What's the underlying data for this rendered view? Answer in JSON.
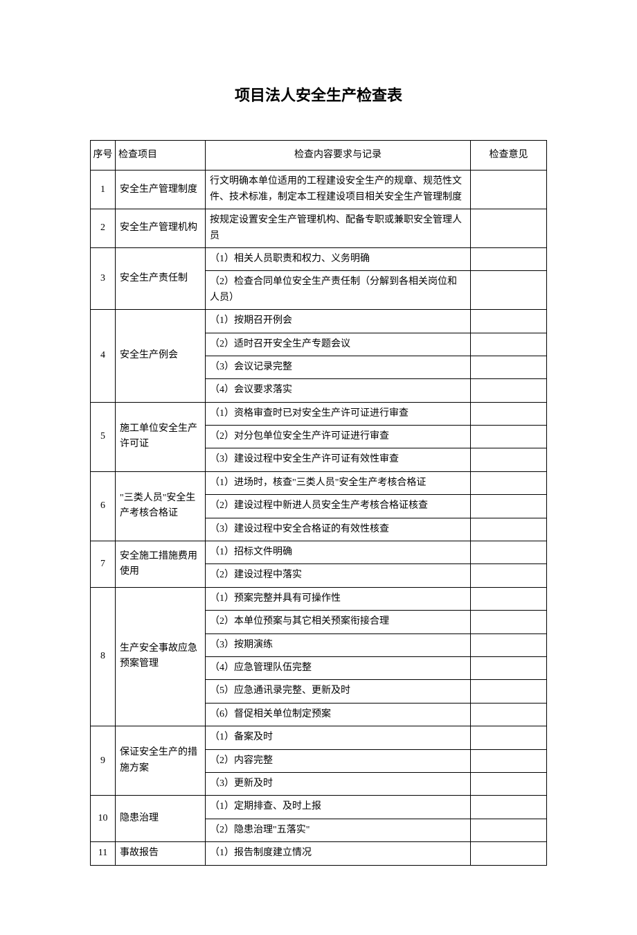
{
  "title": "项目法人安全生产检查表",
  "headers": {
    "seq": "序号",
    "item": "检查项目",
    "content": "检查内容要求与记录",
    "opinion": "检查意见"
  },
  "rows": [
    {
      "seq": "1",
      "item": "安全生产管理制度",
      "contents": [
        "行文明确本单位适用的工程建设安全生产的规章、规范性文件、技术标准，制定本工程建设项目相关安全生产管理制度"
      ],
      "opinion": ""
    },
    {
      "seq": "2",
      "item": "安全生产管理机构",
      "contents": [
        "按规定设置安全生产管理机构、配备专职或兼职安全管理人员"
      ],
      "opinion": ""
    },
    {
      "seq": "3",
      "item": "安全生产责任制",
      "contents": [
        "（1）相关人员职责和权力、义务明确",
        "（2）检查合同单位安全生产责任制（分解到各相关岗位和人员）"
      ],
      "opinion": ""
    },
    {
      "seq": "4",
      "item": "安全生产例会",
      "contents": [
        "（1）按期召开例会",
        "（2）适时召开安全生产专题会议",
        "（3）会议记录完整",
        "（4）会议要求落实"
      ],
      "opinion": ""
    },
    {
      "seq": "5",
      "item": "施工单位安全生产许可证",
      "contents": [
        "（1）资格审查时已对安全生产许可证进行审查",
        "（2）对分包单位安全生产许可证进行审查",
        "（3）建设过程中安全生产许可证有效性审查"
      ],
      "opinion": ""
    },
    {
      "seq": "6",
      "item": "\"三类人员\"安全生产考核合格证",
      "contents": [
        "（1）进场时，核查\"三类人员\"安全生产考核合格证",
        "（2）建设过程中新进人员安全生产考核合格证核查",
        "（3）建设过程中安全合格证的有效性核查"
      ],
      "opinion": ""
    },
    {
      "seq": "7",
      "item": "安全施工措施费用使用",
      "contents": [
        "（1）招标文件明确",
        "（2）建设过程中落实"
      ],
      "opinion": ""
    },
    {
      "seq": "8",
      "item": "生产安全事故应急预案管理",
      "contents": [
        "（1）预案完整并具有可操作性",
        "（2）本单位预案与其它相关预案衔接合理",
        "（3）按期演练",
        "（4）应急管理队伍完整",
        "（5）应急通讯录完整、更新及时",
        "（6）督促相关单位制定预案"
      ],
      "opinion": ""
    },
    {
      "seq": "9",
      "item": "保证安全生产的措施方案",
      "contents": [
        "（1）备案及时",
        "（2）内容完整",
        "（3）更新及时"
      ],
      "opinion": ""
    },
    {
      "seq": "10",
      "item": "隐患治理",
      "contents": [
        "（1）定期排查、及时上报",
        "（2）隐患治理\"五落实\""
      ],
      "opinion": ""
    },
    {
      "seq": "11",
      "item": "事故报告",
      "contents": [
        "（1）报告制度建立情况"
      ],
      "opinion": ""
    }
  ]
}
